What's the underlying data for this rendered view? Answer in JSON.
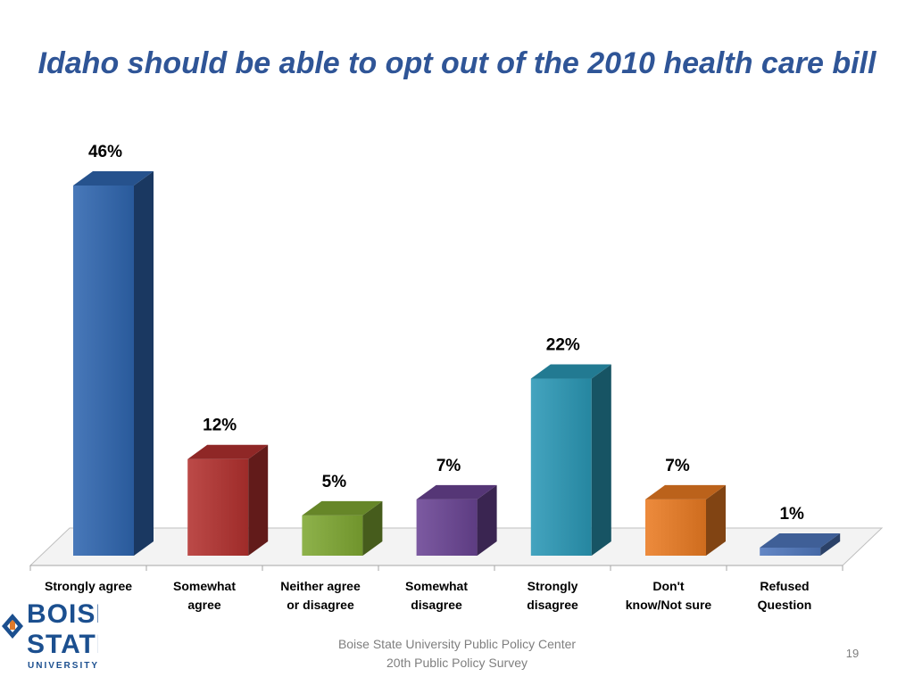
{
  "slide": {
    "title": "Idaho should be able to opt out of the 2010 health care bill",
    "footer_line1": "Boise State University  Public Policy Center",
    "footer_line2": "20th Public Policy Survey",
    "page_number": "19"
  },
  "logo": {
    "line1": "BOISE",
    "line2": "STATE",
    "line3": "UNIVERSITY",
    "icon": "bronco-logo-icon"
  },
  "chart_data": {
    "type": "bar",
    "title": "Idaho should be able to opt out of the 2010 health care bill",
    "categories": [
      [
        "Strongly agree"
      ],
      [
        "Somewhat",
        "agree"
      ],
      [
        "Neither agree",
        "or disagree"
      ],
      [
        "Somewhat",
        "disagree"
      ],
      [
        "Strongly",
        "disagree"
      ],
      [
        "Don't",
        "know/Not sure"
      ],
      [
        "Refused",
        "Question"
      ]
    ],
    "values": [
      46,
      12,
      5,
      7,
      22,
      7,
      1
    ],
    "value_labels": [
      "46%",
      "12%",
      "5%",
      "7%",
      "22%",
      "7%",
      "1%"
    ],
    "colors": [
      "#2f66b0",
      "#b3312f",
      "#7fa832",
      "#6a4494",
      "#2a98b6",
      "#ea7b22",
      "#4f77bd"
    ],
    "xlabel": "",
    "ylabel": "",
    "ylim": [
      0,
      46
    ],
    "grid": false,
    "legend": "none",
    "style": "3d-column"
  }
}
